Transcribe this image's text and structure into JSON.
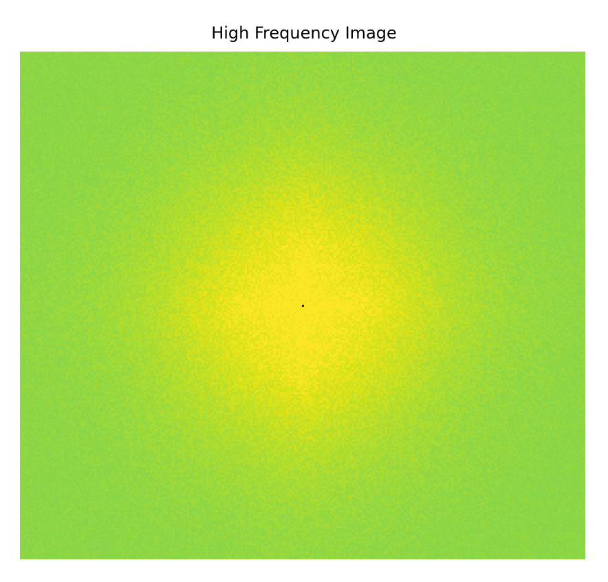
{
  "chart_data": {
    "type": "heatmap",
    "title": "High Frequency Image",
    "xlabel": "",
    "ylabel": "",
    "axes": "off",
    "grid": false,
    "legend": "none",
    "colormap": "viridis",
    "description_values": {
      "center_value": 1.0,
      "edge_value": 0.78,
      "dc_component_value": 0.0
    }
  },
  "colors": {
    "background": "#ffffff",
    "center": "#fde725",
    "edge": "#90d743",
    "dc_dot": "#2a0a3a"
  }
}
